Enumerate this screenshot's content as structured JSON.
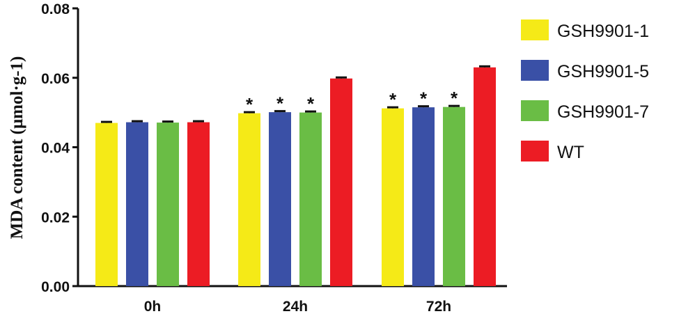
{
  "chart_data": {
    "type": "bar",
    "title": "",
    "xlabel": "",
    "ylabel": "MDA content (μmol·g-1)",
    "ylim": [
      0,
      0.08
    ],
    "yticks": [
      "0.00",
      "0.02",
      "0.04",
      "0.06",
      "0.08"
    ],
    "categories": [
      "0h",
      "24h",
      "72h"
    ],
    "legend_position": "right",
    "grid": false,
    "series": [
      {
        "name": "GSH9901-1",
        "color": "#f5ea17",
        "values": [
          0.047,
          0.0498,
          0.0512
        ],
        "errors": [
          0.0003,
          0.0003,
          0.0003
        ],
        "significance": [
          "",
          "*",
          "*"
        ]
      },
      {
        "name": "GSH9901-5",
        "color": "#3a50a6",
        "values": [
          0.0472,
          0.0501,
          0.0515
        ],
        "errors": [
          0.0003,
          0.0003,
          0.0003
        ],
        "significance": [
          "",
          "*",
          "*"
        ]
      },
      {
        "name": "GSH9901-7",
        "color": "#6abd45",
        "values": [
          0.0471,
          0.05,
          0.0516
        ],
        "errors": [
          0.0003,
          0.0003,
          0.0003
        ],
        "significance": [
          "",
          "*",
          "*"
        ]
      },
      {
        "name": "WT",
        "color": "#ec1c24",
        "values": [
          0.0472,
          0.0598,
          0.063
        ],
        "errors": [
          0.0003,
          0.0003,
          0.0003
        ],
        "significance": [
          "",
          "",
          ""
        ]
      }
    ]
  }
}
